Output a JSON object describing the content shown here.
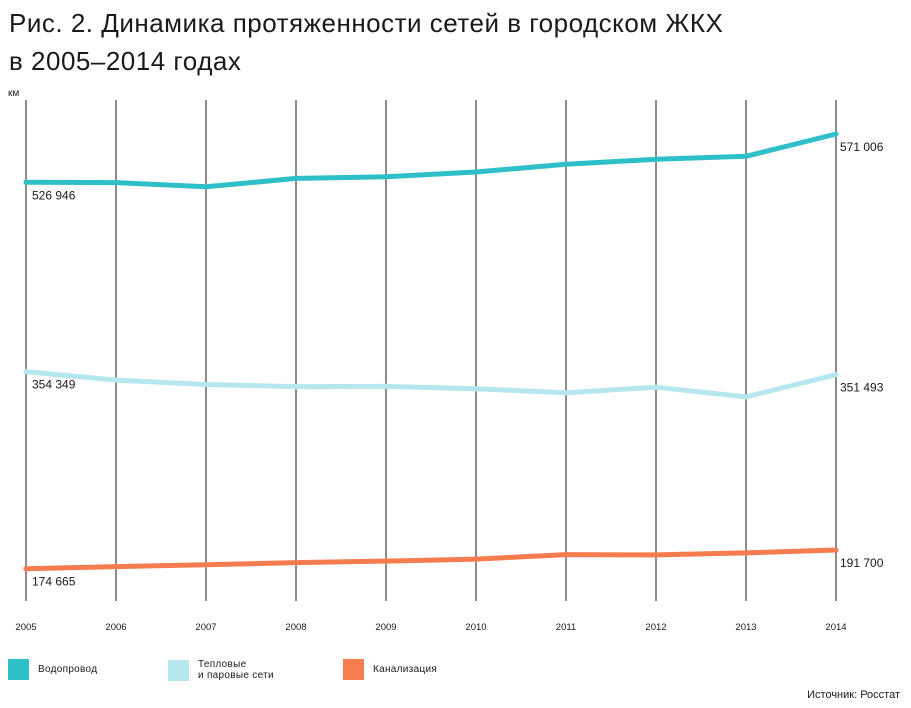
{
  "header": {
    "title_line1": "Рис. 2. Динамика протяженности сетей в городском ЖКХ",
    "title_line2": "в 2005–2014 годах"
  },
  "source": "Источник: Росстат",
  "chart_data": {
    "type": "line",
    "ylabel": "км",
    "categories": [
      "2005",
      "2006",
      "2007",
      "2008",
      "2009",
      "2010",
      "2011",
      "2012",
      "2013",
      "2014"
    ],
    "ylim": [
      160000,
      610000
    ],
    "grid": "vertical",
    "legend_position": "bottom",
    "series": [
      {
        "name": "Водопровод",
        "color": "#2fbfc9",
        "values": [
          526946,
          526700,
          522900,
          530500,
          532000,
          536400,
          543400,
          547900,
          550700,
          571006
        ],
        "start_label": "526 946",
        "end_label": "571 006"
      },
      {
        "name": "Тепловые\nи паровые сети",
        "color": "#b7e7ee",
        "values": [
          354349,
          346600,
          342600,
          340700,
          340900,
          338700,
          335100,
          340100,
          331300,
          351493
        ],
        "start_label": "354 349",
        "end_label": "351 493"
      },
      {
        "name": "Канализация",
        "color": "#f47c4e",
        "values": [
          174665,
          176600,
          178200,
          180200,
          181600,
          183400,
          187500,
          187200,
          189100,
          191700
        ],
        "start_label": "174 665",
        "end_label": "191 700"
      }
    ]
  }
}
